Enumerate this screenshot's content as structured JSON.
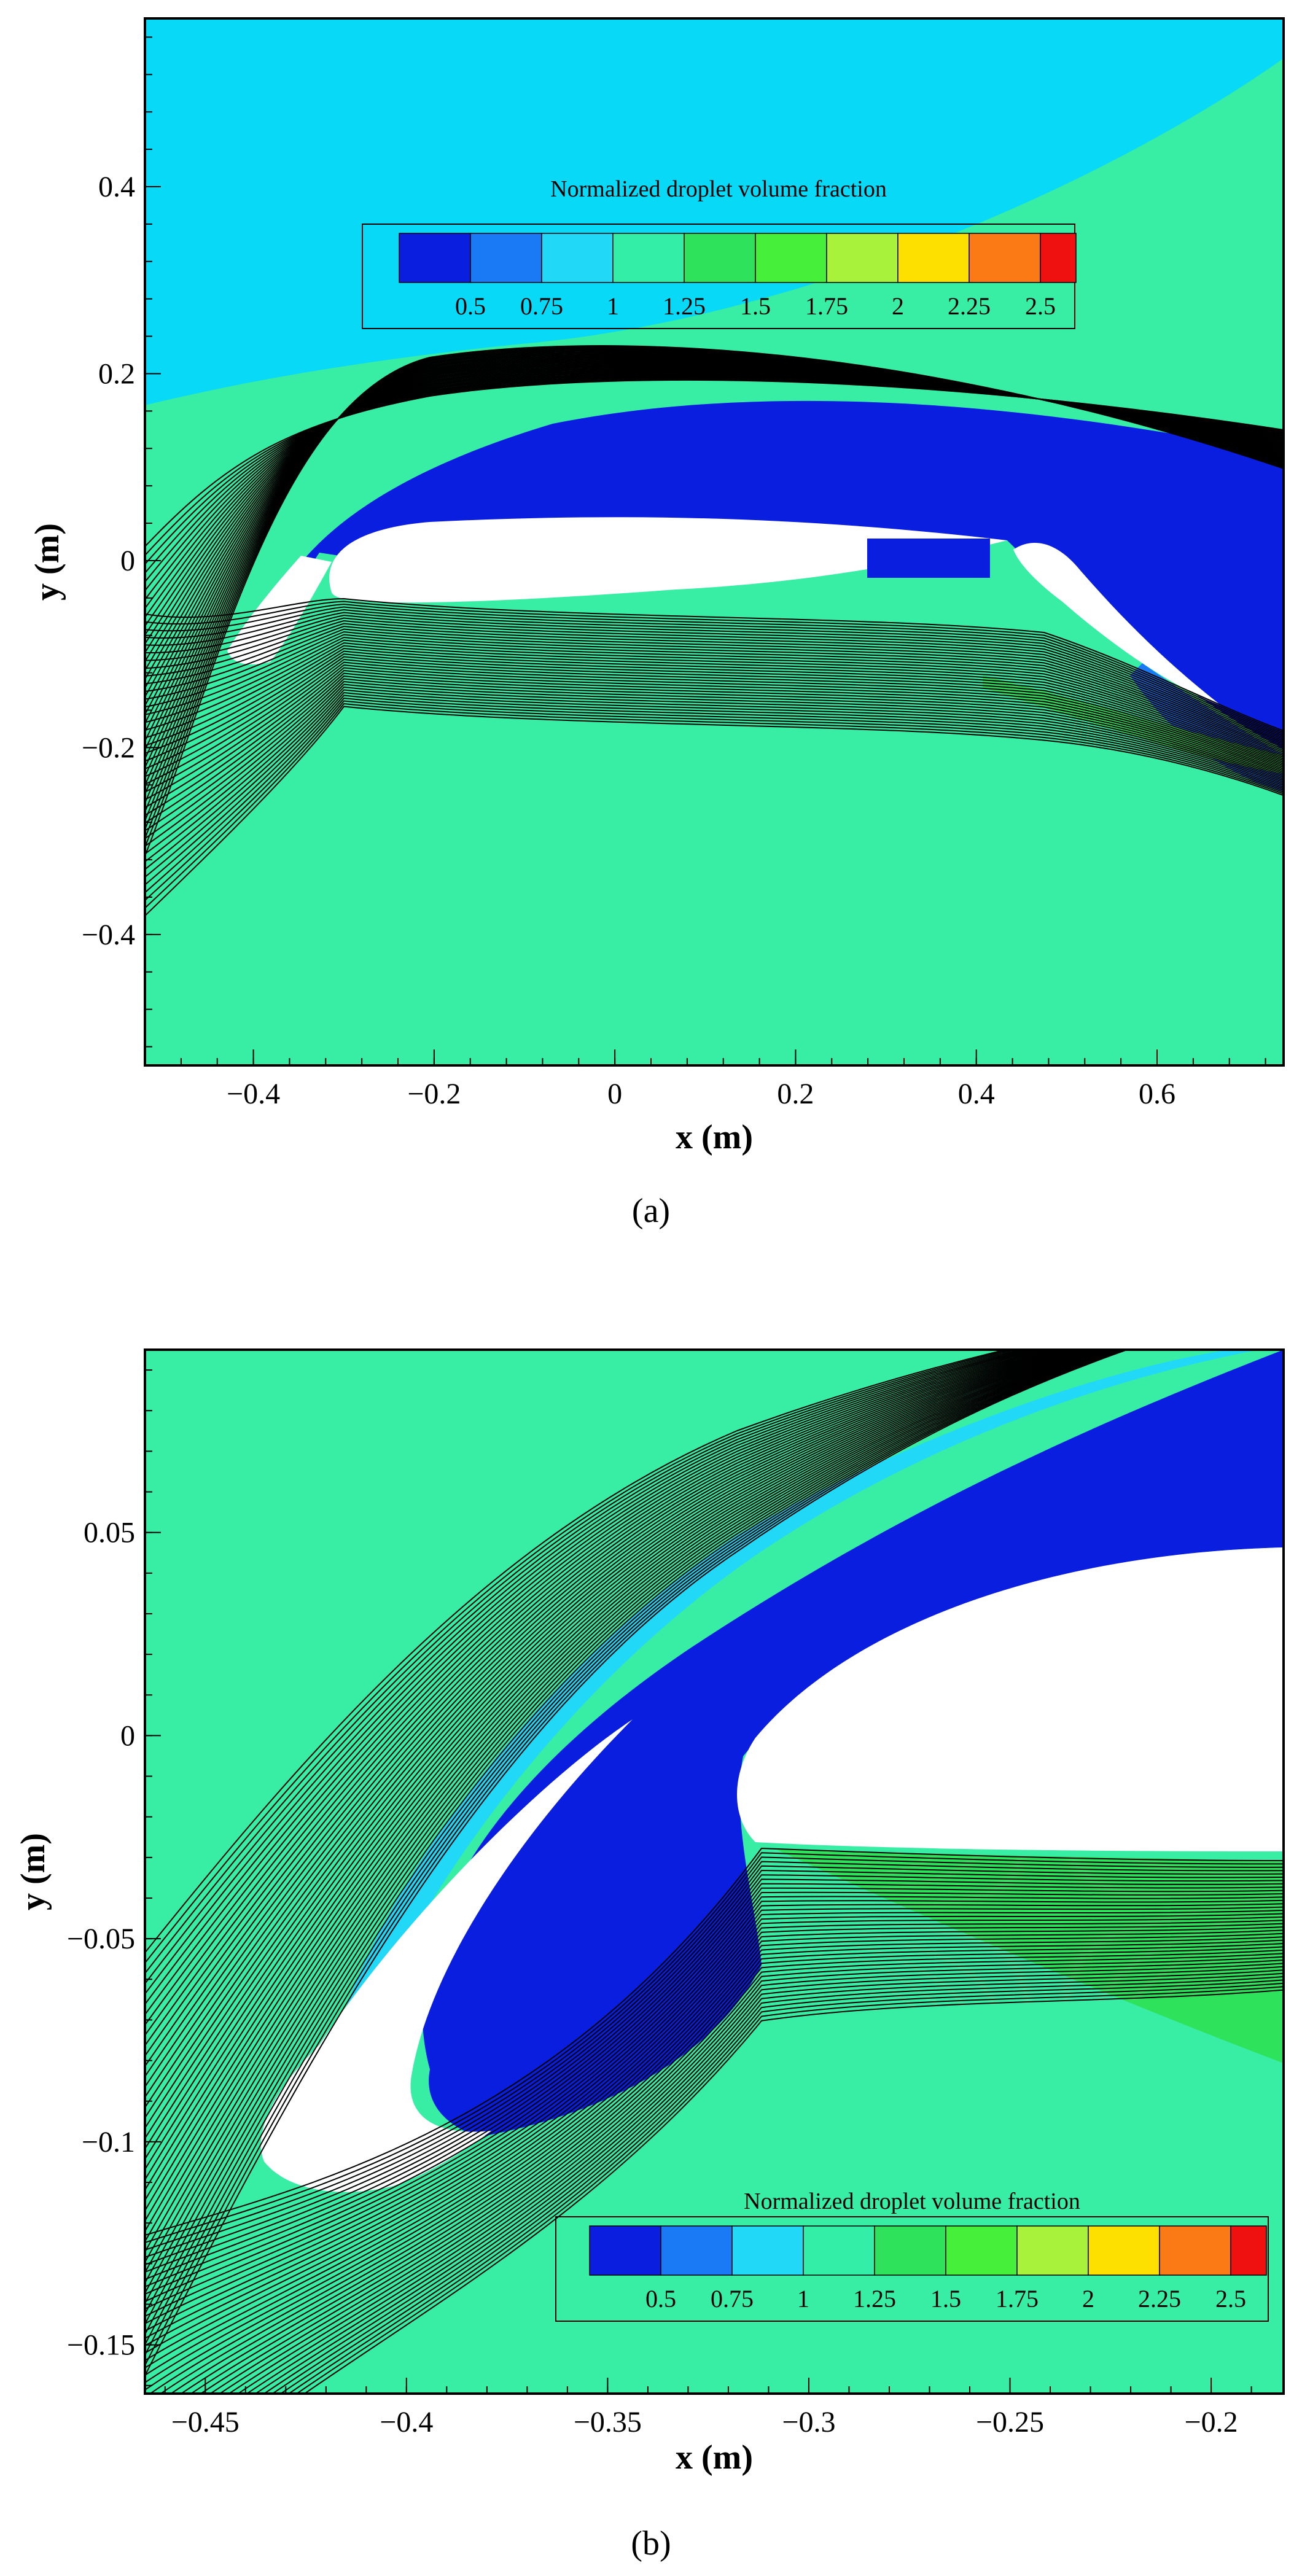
{
  "figure": {
    "panel_a_label": "(a)",
    "panel_b_label": "(b)"
  },
  "colorbar": {
    "title": "Normalized droplet volume fraction",
    "colors": [
      "#0a1ee0",
      "#1a7af5",
      "#22d8f7",
      "#32eea6",
      "#2fe25b",
      "#46f03a",
      "#a8f23c",
      "#fde000",
      "#fb7a16",
      "#ef1010"
    ],
    "tick_labels": [
      "0.5",
      "0.75",
      "1",
      "1.25",
      "1.5",
      "1.75",
      "2",
      "2.25",
      "2.5"
    ]
  },
  "colors": {
    "background_field": "#38eea4",
    "freestream_upper": "#07d9f7",
    "depleted_region": "#0a1ee0",
    "airfoil": "#ffffff",
    "streamline": "#000000"
  },
  "chart_data": [
    {
      "type": "heatmap",
      "panel": "a",
      "xlabel": "x (m)",
      "ylabel": "y (m)",
      "xlim": [
        -0.52,
        0.74
      ],
      "ylim": [
        -0.54,
        0.58
      ],
      "xticks": [
        -0.4,
        -0.2,
        0,
        0.2,
        0.4,
        0.6
      ],
      "xtick_labels": [
        "−0.4",
        "−0.2",
        "0",
        "0.2",
        "0.4",
        "0.6"
      ],
      "yticks": [
        0.4,
        0.2,
        0,
        -0.2,
        -0.4
      ],
      "ytick_labels": [
        "0.4",
        "0.2",
        "0",
        "−0.2",
        "−0.4"
      ],
      "legend_position": "top-center",
      "levels": [
        0.5,
        0.75,
        1,
        1.25,
        1.5,
        1.75,
        2,
        2.25,
        2.5
      ]
    },
    {
      "type": "heatmap",
      "panel": "b",
      "xlabel": "x (m)",
      "ylabel": "y (m)",
      "xlim": [
        -0.465,
        -0.182
      ],
      "ylim": [
        -0.162,
        0.095
      ],
      "xticks": [
        -0.45,
        -0.4,
        -0.35,
        -0.3,
        -0.25,
        -0.2
      ],
      "xtick_labels": [
        "−0.45",
        "−0.4",
        "−0.35",
        "−0.3",
        "−0.25",
        "−0.2"
      ],
      "yticks": [
        0.05,
        0,
        -0.05,
        -0.1,
        -0.15
      ],
      "ytick_labels": [
        "0.05",
        "0",
        "−0.05",
        "−0.1",
        "−0.15"
      ],
      "legend_position": "bottom-right",
      "levels": [
        0.5,
        0.75,
        1,
        1.25,
        1.5,
        1.75,
        2,
        2.25,
        2.5
      ]
    }
  ]
}
